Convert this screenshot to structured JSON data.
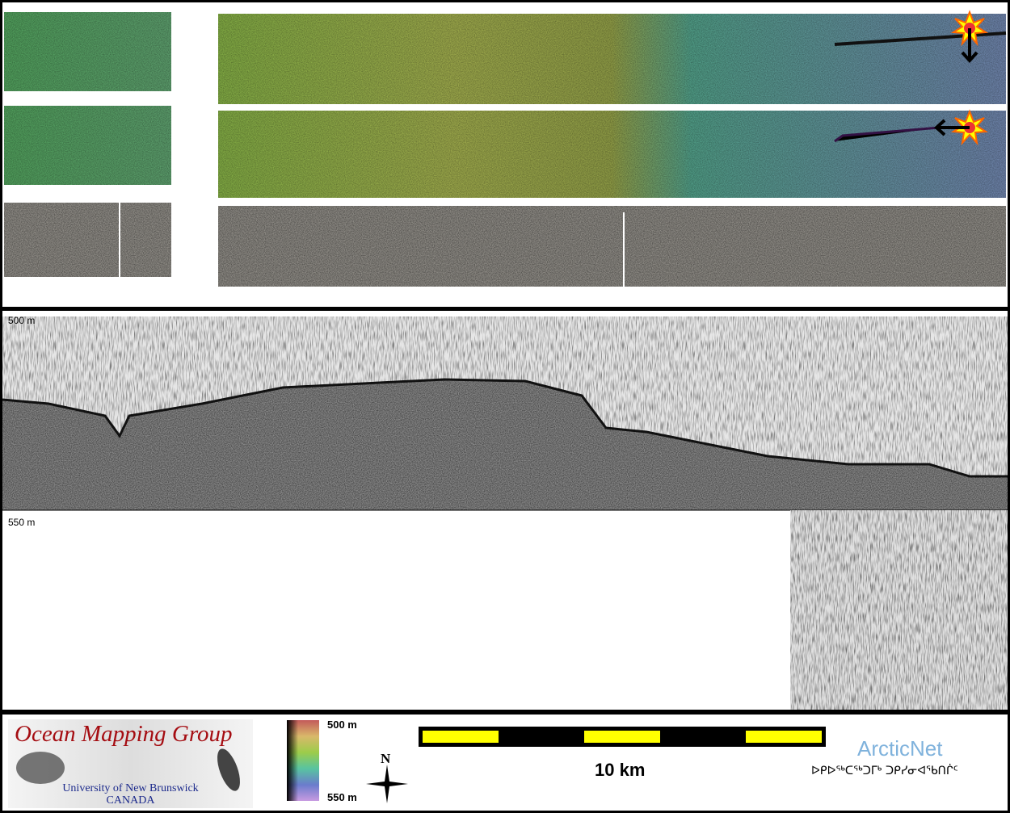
{
  "map_panel": {
    "markers": [
      {
        "icon": "sunburst-icon",
        "arrow": "arrow-down-icon"
      },
      {
        "icon": "sunburst-icon",
        "arrow": "arrow-left-icon"
      }
    ]
  },
  "profile_panel": {
    "depth_top_label": "500 m",
    "depth_bottom_label": "550 m"
  },
  "legend": {
    "logo_title": "Ocean Mapping Group",
    "logo_subtitle": "University of New Brunswick",
    "logo_country": "CANADA",
    "colorbar_top": "500 m",
    "colorbar_bottom": "550 m",
    "north_label": "N",
    "scale_label": "10 km",
    "arcticnet_name": "ArcticNet",
    "arcticnet_syllabics": "ᐅᑭᐅᖅᑕᖅᑐᒥᒃ ᑐᑭᓯᓂᐊᖃᑎᒌᑦ",
    "colors": {
      "scale_yellow": "#ffff00",
      "logo_red": "#a50d12",
      "logo_blue": "#1c2a8c",
      "arcticnet_blue": "#7fb2dc"
    }
  }
}
